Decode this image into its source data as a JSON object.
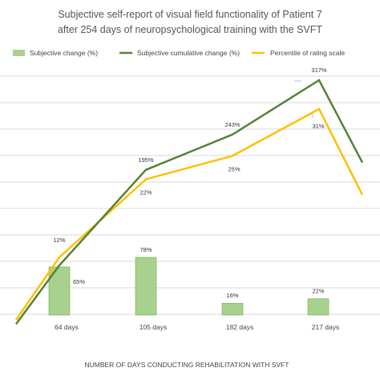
{
  "chart_data": {
    "type": "bar",
    "title": "Subjective self-report of visual field functionality of Patient 7",
    "subtitle": "after 254 days of neuropsychological training with the SVFT",
    "xlabel": "NUMBER OF DAYS CONDUCTING REHABILITATION WITH SVFT",
    "categories": [
      "64 days",
      "105 days",
      "182 days",
      "217 days"
    ],
    "grid": true,
    "legend_position": "top",
    "series": [
      {
        "name": "Subjective change (%)",
        "kind": "bar",
        "color": "#a9d18e",
        "border_color": "#70ad47",
        "values": [
          65,
          78,
          16,
          22
        ],
        "value_labels": [
          "65%",
          "78%",
          "16%",
          "22%"
        ]
      },
      {
        "name": "Subjective cumulative change (%)",
        "kind": "line",
        "color": "#548235",
        "x": [
          -0.5,
          0,
          1,
          2,
          3,
          3.5
        ],
        "values": [
          -15,
          65,
          195,
          243,
          317,
          205
        ],
        "labeled_points": [
          1,
          2,
          3,
          4
        ],
        "value_labels": [
          "",
          "",
          "195%",
          "243%",
          "317%",
          ""
        ]
      },
      {
        "name": "Percentile of rating scale",
        "kind": "line",
        "color": "#ffc000",
        "x": [
          -0.5,
          0,
          1,
          2,
          3,
          3.5
        ],
        "values": [
          4,
          12,
          22,
          25,
          31,
          20
        ],
        "labeled_points": [
          1,
          2,
          3,
          4
        ],
        "value_labels": [
          "",
          "12%",
          "22%",
          "25%",
          "31%",
          ""
        ]
      }
    ]
  }
}
